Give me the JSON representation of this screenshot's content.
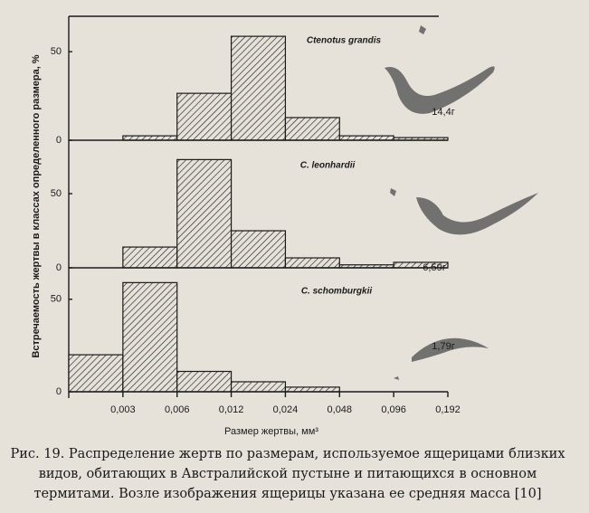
{
  "chart_data": [
    {
      "type": "histogram",
      "title": "Ctenotus grandis",
      "annotation": "14,4г",
      "ylabel": "Встречаемость жертвы в классах определенного размера, %",
      "bins": [
        0.003,
        0.006,
        0.012,
        0.024,
        0.048,
        0.096,
        0.192
      ],
      "values": [
        2.5,
        26.5,
        58.7,
        12.8,
        2.5,
        1.5
      ],
      "xscale": "log",
      "xlim": [
        0.0015,
        0.192
      ],
      "ylim": [
        0,
        70
      ],
      "yticks": [
        0,
        50
      ]
    },
    {
      "type": "histogram",
      "title": "C. leonhardii",
      "annotation": "6,59г",
      "bins": [
        0.003,
        0.006,
        0.012,
        0.024,
        0.048,
        0.096,
        0.192
      ],
      "values": [
        14,
        73,
        25,
        6.7,
        2,
        3.7
      ],
      "xscale": "log",
      "xlim": [
        0.0015,
        0.192
      ],
      "ylim": [
        0,
        83
      ],
      "yticks": [
        0,
        50
      ]
    },
    {
      "type": "histogram",
      "title": "C. schomburgkii",
      "annotation": "1,79г",
      "xlabel": "Размер жертвы, мм³",
      "bins": [
        0.0015,
        0.003,
        0.006,
        0.012,
        0.024,
        0.048
      ],
      "values": [
        20,
        59,
        11,
        5.4,
        2.5
      ],
      "xscale": "log",
      "xlim": [
        0.0015,
        0.192
      ],
      "ylim": [
        0,
        67
      ],
      "yticks": [
        0,
        50
      ],
      "xticks": [
        {
          "value": 0.003,
          "label": "0,003"
        },
        {
          "value": 0.006,
          "label": "0,006"
        },
        {
          "value": 0.012,
          "label": "0,012"
        },
        {
          "value": 0.024,
          "label": "0,024"
        },
        {
          "value": 0.048,
          "label": "0,048"
        },
        {
          "value": 0.096,
          "label": "0,096"
        },
        {
          "value": 0.192,
          "label": "0,192"
        }
      ]
    }
  ],
  "caption": [
    "Рис. 19. Распределение жертв по размерам, используемое ящерицами близких",
    "видов, обитающих в Австралийской пустыне и питающихся в основном",
    "термитами.  Возле изображения ящерицы указана ее средняя масса [10]"
  ]
}
